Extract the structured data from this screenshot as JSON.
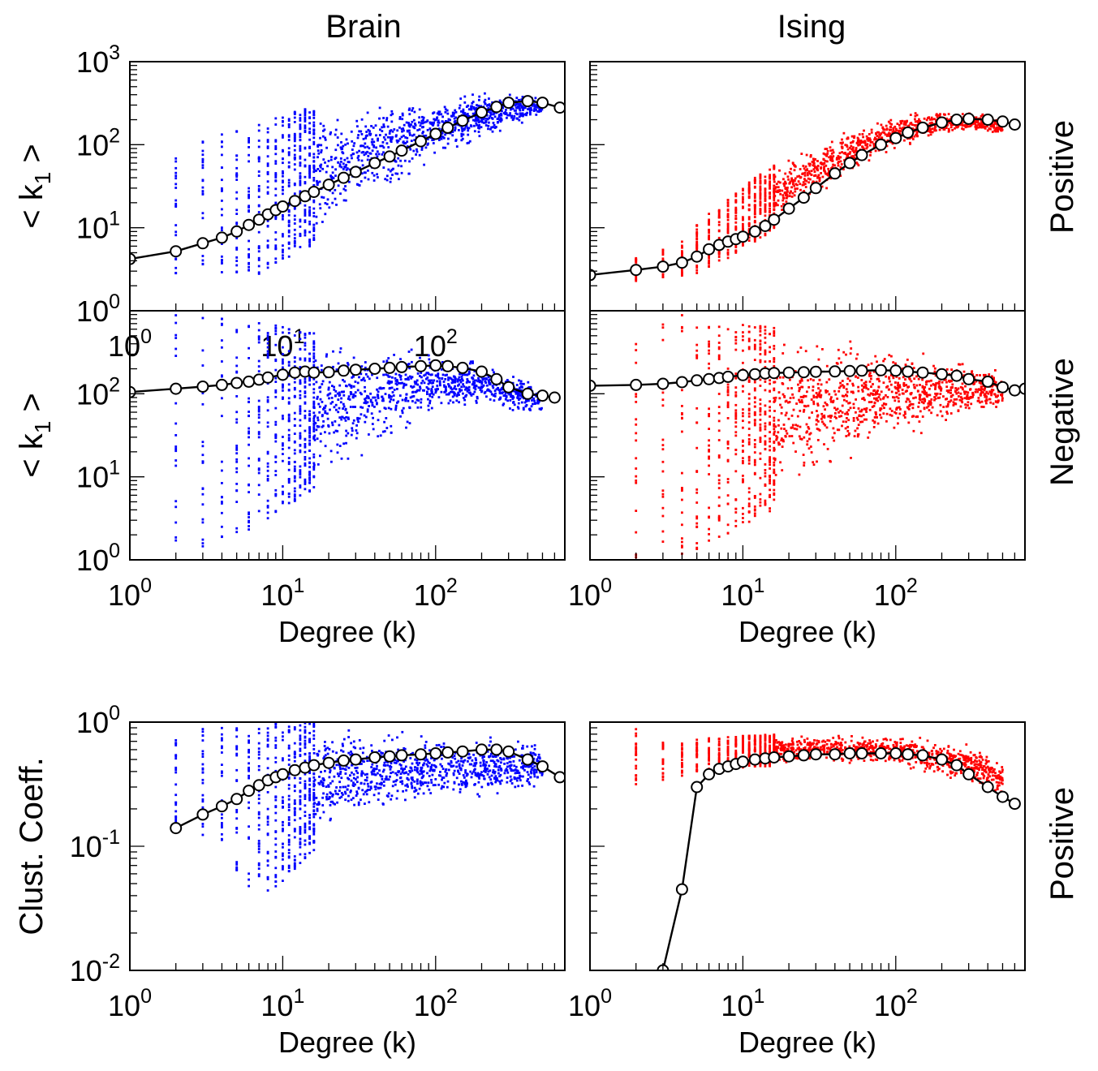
{
  "figure": {
    "column_titles": [
      "Brain",
      "Ising"
    ],
    "row_labels": [
      "Positive",
      "Negative",
      "Positive"
    ],
    "colors": {
      "Brain": "#0000ff",
      "Ising": "#ff0000",
      "mean_line": "#000000",
      "mean_marker_fill": "#ffffff"
    }
  },
  "chart_data": [
    {
      "type": "scatter",
      "panel": "top-left",
      "column": "Brain",
      "row": "Positive",
      "xlabel": "",
      "ylabel": "< k1 >",
      "xscale": "log",
      "yscale": "log",
      "xlim": [
        1,
        700
      ],
      "ylim": [
        1,
        1000
      ],
      "x_ticks": [
        "10^0",
        "10^1",
        "10^2"
      ],
      "y_ticks": [
        "10^0",
        "10^1",
        "10^2",
        "10^3"
      ],
      "series": [
        {
          "role": "scatter",
          "color": "#0000ff",
          "spread_low": [
            2.6,
            3.0,
            2.5,
            2.3,
            2.5,
            3.0,
            4.0,
            5.5,
            8,
            14,
            20,
            30,
            45,
            60,
            80,
            110,
            150,
            180,
            220
          ],
          "spread_high": [
            110,
            120,
            135,
            145,
            155,
            190,
            230,
            270,
            320,
            380,
            400,
            420,
            440,
            450,
            460,
            470,
            470,
            460,
            400
          ],
          "x": [
            2,
            3,
            4,
            5,
            6,
            8,
            10,
            14,
            20,
            30,
            40,
            60,
            80,
            100,
            150,
            200,
            300,
            400,
            500
          ]
        },
        {
          "role": "mean",
          "x": [
            1,
            2,
            3,
            4,
            5,
            6,
            7,
            8,
            9,
            10,
            12,
            14,
            16,
            20,
            25,
            30,
            40,
            50,
            60,
            80,
            100,
            120,
            150,
            200,
            250,
            300,
            400,
            500,
            650
          ],
          "y": [
            4.2,
            5.2,
            6.5,
            7.6,
            9,
            10.8,
            12.5,
            14.5,
            16.3,
            18,
            21,
            24,
            27,
            33,
            40,
            47,
            60,
            72,
            85,
            110,
            135,
            160,
            195,
            245,
            285,
            320,
            335,
            320,
            280
          ]
        }
      ]
    },
    {
      "type": "scatter",
      "panel": "top-right",
      "column": "Ising",
      "row": "Positive",
      "xlabel": "",
      "ylabel": "",
      "xscale": "log",
      "yscale": "log",
      "xlim": [
        1,
        700
      ],
      "ylim": [
        1,
        1000
      ],
      "x_ticks": [],
      "y_ticks": [],
      "series": [
        {
          "role": "scatter",
          "color": "#ff0000",
          "spread_low": [
            2.2,
            2.5,
            2.6,
            2.8,
            3.4,
            4.3,
            5.5,
            8,
            14,
            22,
            32,
            50,
            65,
            80,
            110,
            130,
            140,
            130,
            120
          ],
          "spread_high": [
            4.5,
            5.5,
            7.5,
            11,
            15,
            22,
            32,
            48,
            75,
            110,
            140,
            190,
            220,
            245,
            260,
            255,
            250,
            240,
            230
          ],
          "x": [
            2,
            3,
            4,
            5,
            6,
            8,
            10,
            14,
            20,
            30,
            40,
            60,
            80,
            100,
            150,
            200,
            300,
            400,
            500
          ]
        },
        {
          "role": "mean",
          "x": [
            1,
            2,
            3,
            4,
            5,
            6,
            7,
            8,
            9,
            10,
            12,
            14,
            16,
            20,
            25,
            30,
            40,
            50,
            60,
            80,
            100,
            120,
            150,
            200,
            250,
            300,
            400,
            500,
            600
          ],
          "y": [
            2.7,
            3.1,
            3.4,
            3.8,
            4.5,
            5.5,
            6.2,
            6.8,
            7.3,
            7.8,
            9,
            10.5,
            12.5,
            17,
            23,
            30,
            45,
            60,
            75,
            100,
            120,
            140,
            160,
            185,
            200,
            205,
            200,
            190,
            175
          ]
        }
      ]
    },
    {
      "type": "scatter",
      "panel": "middle-left",
      "column": "Brain",
      "row": "Negative",
      "xlabel": "Degree (k)",
      "ylabel": "< k1 >",
      "xscale": "log",
      "yscale": "log",
      "xlim": [
        1,
        700
      ],
      "ylim": [
        1,
        1000
      ],
      "x_ticks": [
        "10^0",
        "10^1",
        "10^2"
      ],
      "y_ticks": [
        "10^0",
        "10^1",
        "10^2"
      ],
      "series": [
        {
          "role": "scatter",
          "color": "#0000ff",
          "spread_low": [
            1.2,
            1.3,
            1.4,
            1.6,
            2.0,
            3.0,
            4.0,
            6.0,
            9.0,
            14,
            20,
            28,
            40,
            50,
            60,
            70,
            60,
            55,
            55
          ],
          "spread_high": [
            950,
            900,
            850,
            800,
            750,
            700,
            650,
            600,
            550,
            500,
            460,
            420,
            380,
            340,
            300,
            250,
            200,
            150,
            120
          ],
          "x": [
            2,
            3,
            4,
            5,
            6,
            8,
            10,
            14,
            20,
            30,
            40,
            60,
            80,
            100,
            150,
            200,
            300,
            400,
            500
          ]
        },
        {
          "role": "mean",
          "x": [
            1,
            2,
            3,
            4,
            5,
            6,
            7,
            8,
            10,
            12,
            14,
            16,
            20,
            25,
            30,
            40,
            50,
            60,
            80,
            100,
            120,
            150,
            200,
            250,
            300,
            400,
            500,
            600
          ],
          "y": [
            105,
            115,
            122,
            128,
            135,
            140,
            148,
            157,
            170,
            180,
            185,
            180,
            182,
            190,
            195,
            200,
            205,
            210,
            215,
            220,
            215,
            205,
            185,
            150,
            120,
            100,
            95,
            90
          ]
        }
      ]
    },
    {
      "type": "scatter",
      "panel": "middle-right",
      "column": "Ising",
      "row": "Negative",
      "xlabel": "Degree (k)",
      "ylabel": "",
      "xscale": "log",
      "yscale": "log",
      "xlim": [
        1,
        700
      ],
      "ylim": [
        1,
        1000
      ],
      "x_ticks": [
        "10^0",
        "10^1",
        "10^2"
      ],
      "y_ticks": [],
      "series": [
        {
          "role": "scatter",
          "color": "#ff0000",
          "spread_low": [
            1.0,
            1.0,
            1.1,
            1.3,
            1.6,
            2.0,
            2.5,
            3.5,
            5.0,
            7,
            10,
            14,
            20,
            25,
            30,
            40,
            50,
            55,
            60
          ],
          "spread_high": [
            950,
            950,
            900,
            850,
            800,
            750,
            700,
            650,
            600,
            550,
            500,
            460,
            420,
            380,
            340,
            300,
            260,
            220,
            200
          ],
          "x": [
            2,
            3,
            4,
            5,
            6,
            8,
            10,
            14,
            20,
            30,
            40,
            60,
            80,
            100,
            150,
            200,
            300,
            400,
            500
          ]
        },
        {
          "role": "mean",
          "x": [
            1,
            2,
            3,
            4,
            5,
            6,
            7,
            8,
            10,
            12,
            14,
            16,
            20,
            25,
            30,
            40,
            50,
            60,
            80,
            100,
            120,
            150,
            200,
            250,
            300,
            400,
            500,
            600,
            700
          ],
          "y": [
            125,
            128,
            132,
            138,
            145,
            150,
            155,
            160,
            168,
            172,
            176,
            178,
            180,
            182,
            184,
            186,
            188,
            190,
            192,
            190,
            185,
            180,
            172,
            165,
            150,
            140,
            120,
            110,
            115
          ]
        }
      ]
    },
    {
      "type": "scatter",
      "panel": "bottom-left",
      "column": "Brain",
      "row": "Positive",
      "xlabel": "Degree (k)",
      "ylabel": "Clust. Coeff.",
      "xscale": "log",
      "yscale": "log",
      "xlim": [
        1,
        700
      ],
      "ylim": [
        0.01,
        1
      ],
      "x_ticks": [
        "10^0",
        "10^1",
        "10^2"
      ],
      "y_ticks": [
        "10^-2",
        "10^-1",
        "10^0"
      ],
      "series": [
        {
          "role": "scatter",
          "color": "#0000ff",
          "spread_low": [
            0.14,
            0.12,
            0.1,
            0.06,
            0.045,
            0.04,
            0.05,
            0.08,
            0.12,
            0.15,
            0.17,
            0.18,
            0.2,
            0.21,
            0.22,
            0.23,
            0.24,
            0.25,
            0.27
          ],
          "spread_high": [
            0.9,
            0.92,
            0.95,
            0.97,
            0.98,
            0.99,
            1.0,
            1.0,
            1.0,
            0.98,
            0.95,
            0.9,
            0.88,
            0.85,
            0.82,
            0.8,
            0.78,
            0.75,
            0.7
          ],
          "x": [
            2,
            3,
            4,
            5,
            6,
            8,
            10,
            14,
            20,
            30,
            40,
            60,
            80,
            100,
            150,
            200,
            300,
            400,
            500
          ]
        },
        {
          "role": "mean",
          "x": [
            2,
            3,
            4,
            5,
            6,
            7,
            8,
            9,
            10,
            12,
            14,
            16,
            20,
            25,
            30,
            40,
            50,
            60,
            80,
            100,
            120,
            150,
            200,
            250,
            300,
            400,
            500,
            650
          ],
          "y": [
            0.14,
            0.18,
            0.21,
            0.24,
            0.28,
            0.31,
            0.34,
            0.36,
            0.38,
            0.41,
            0.43,
            0.45,
            0.47,
            0.49,
            0.5,
            0.52,
            0.53,
            0.54,
            0.55,
            0.56,
            0.57,
            0.58,
            0.6,
            0.6,
            0.58,
            0.5,
            0.44,
            0.36
          ]
        }
      ]
    },
    {
      "type": "scatter",
      "panel": "bottom-right",
      "column": "Ising",
      "row": "Positive",
      "xlabel": "Degree (k)",
      "ylabel": "",
      "xscale": "log",
      "yscale": "log",
      "xlim": [
        1,
        700
      ],
      "ylim": [
        0.01,
        1
      ],
      "x_ticks": [
        "10^0",
        "10^1",
        "10^2"
      ],
      "y_ticks": [],
      "series": [
        {
          "role": "scatter",
          "color": "#ff0000",
          "spread_low": [
            0.3,
            0.33,
            0.36,
            0.38,
            0.4,
            0.42,
            0.43,
            0.44,
            0.45,
            0.45,
            0.45,
            0.45,
            0.45,
            0.44,
            0.4,
            0.35,
            0.3,
            0.26,
            0.24
          ],
          "spread_high": [
            0.9,
            0.75,
            0.7,
            0.72,
            0.74,
            0.76,
            0.78,
            0.79,
            0.8,
            0.8,
            0.8,
            0.8,
            0.8,
            0.79,
            0.78,
            0.75,
            0.7,
            0.6,
            0.5
          ],
          "x": [
            2,
            3,
            4,
            5,
            6,
            8,
            10,
            14,
            20,
            30,
            40,
            60,
            80,
            100,
            150,
            200,
            300,
            400,
            500
          ]
        },
        {
          "role": "mean",
          "x": [
            3,
            4,
            5,
            6,
            7,
            8,
            9,
            10,
            12,
            14,
            16,
            20,
            25,
            30,
            40,
            50,
            60,
            80,
            100,
            120,
            150,
            200,
            250,
            300,
            400,
            500,
            600
          ],
          "y": [
            0.01,
            0.045,
            0.3,
            0.38,
            0.42,
            0.44,
            0.46,
            0.48,
            0.5,
            0.51,
            0.52,
            0.53,
            0.54,
            0.55,
            0.55,
            0.56,
            0.56,
            0.56,
            0.56,
            0.55,
            0.54,
            0.5,
            0.45,
            0.38,
            0.3,
            0.25,
            0.22
          ]
        }
      ]
    }
  ]
}
